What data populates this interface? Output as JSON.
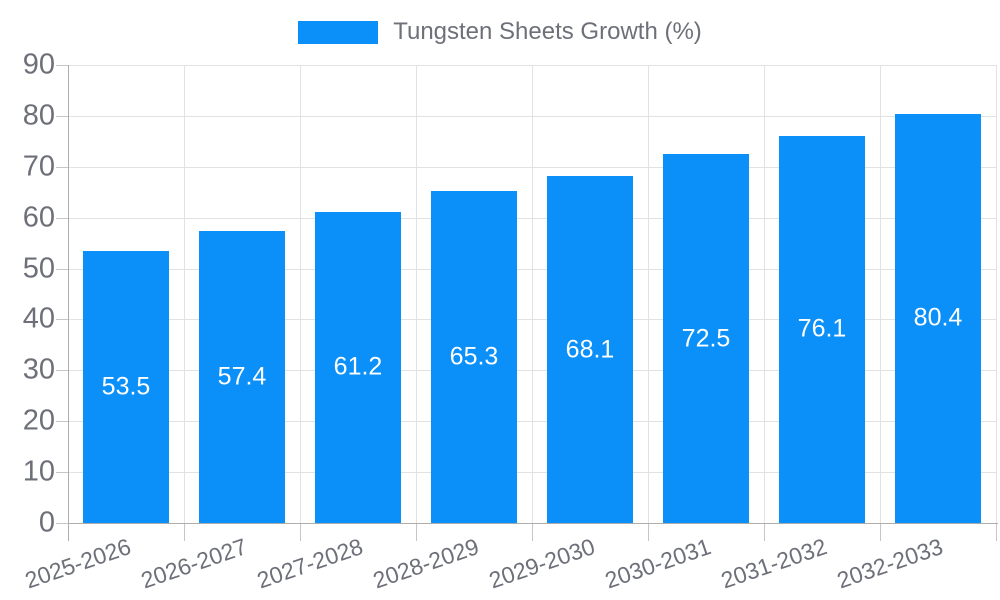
{
  "chart_data": {
    "type": "bar",
    "title": "Tungsten Sheets Growth (%)",
    "categories": [
      "2025-2026",
      "2026-2027",
      "2027-2028",
      "2028-2029",
      "2029-2030",
      "2030-2031",
      "2031-2032",
      "2032-2033"
    ],
    "values": [
      53.5,
      57.4,
      61.2,
      65.3,
      68.1,
      72.5,
      76.1,
      80.4
    ],
    "value_labels": [
      "53.5",
      "57.4",
      "61.2",
      "65.3",
      "68.1",
      "72.5",
      "76.1",
      "80.4"
    ],
    "xlabel": "",
    "ylabel": "",
    "ylim": [
      0,
      90
    ],
    "ytick_step": 10,
    "ytick_labels": [
      "0",
      "10",
      "20",
      "30",
      "40",
      "50",
      "60",
      "70",
      "80",
      "90"
    ],
    "grid": "horizontal-and-vertical",
    "legend_position": "top-center",
    "x_label_rotation_deg": -19,
    "colors": {
      "bar": "#0A90F8",
      "grid": "#E2E2E2",
      "tick": "#C6C6C6",
      "axis_line": "#ADADAD",
      "axis_label": "#6E7079",
      "value_label": "#FFFFFF",
      "background": "#FFFFFF"
    }
  }
}
